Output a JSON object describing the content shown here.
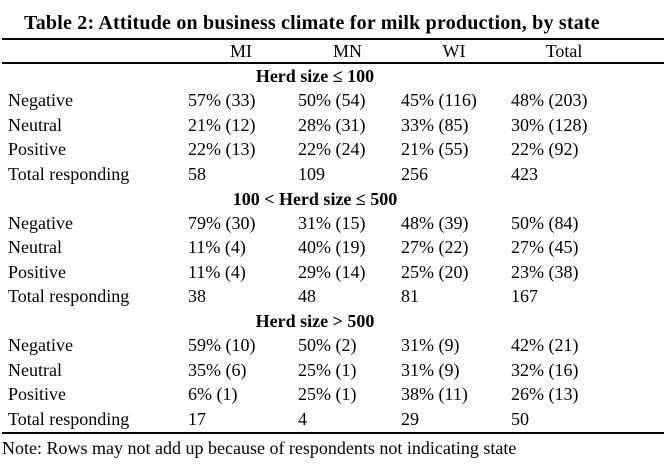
{
  "title": "Table 2: Attitude on business climate for milk production, by state",
  "columns": [
    "MI",
    "MN",
    "WI",
    "Total"
  ],
  "sections": [
    {
      "header": "Herd size ≤ 100",
      "rows": [
        {
          "label": "Negative",
          "values": [
            "57% (33)",
            "50% (54)",
            "45% (116)",
            "48% (203)"
          ]
        },
        {
          "label": "Neutral",
          "values": [
            "21% (12)",
            "28% (31)",
            "33% (85)",
            "30% (128)"
          ]
        },
        {
          "label": "Positive",
          "values": [
            "22% (13)",
            "22% (24)",
            "21% (55)",
            "22% (92)"
          ]
        },
        {
          "label": "Total responding",
          "values": [
            "58",
            "109",
            "256",
            "423"
          ]
        }
      ]
    },
    {
      "header": "100 < Herd size ≤ 500",
      "rows": [
        {
          "label": "Negative",
          "values": [
            "79% (30)",
            "31% (15)",
            "48% (39)",
            "50% (84)"
          ]
        },
        {
          "label": "Neutral",
          "values": [
            "11% (4)",
            "40% (19)",
            "27% (22)",
            "27% (45)"
          ]
        },
        {
          "label": "Positive",
          "values": [
            "11% (4)",
            "29% (14)",
            "25% (20)",
            "23% (38)"
          ]
        },
        {
          "label": "Total responding",
          "values": [
            "38",
            "48",
            "81",
            "167"
          ]
        }
      ]
    },
    {
      "header": "Herd size > 500",
      "rows": [
        {
          "label": "Negative",
          "values": [
            "59% (10)",
            "50% (2)",
            "31% (9)",
            "42% (21)"
          ]
        },
        {
          "label": "Neutral",
          "values": [
            "35% (6)",
            "25% (1)",
            "31% (9)",
            "32% (16)"
          ]
        },
        {
          "label": "Positive",
          "values": [
            "6% (1)",
            "25% (1)",
            "38% (11)",
            "26% (13)"
          ]
        },
        {
          "label": "Total responding",
          "values": [
            "17",
            "4",
            "29",
            "50"
          ]
        }
      ]
    }
  ],
  "note": "Note: Rows may not add up because of respondents not indicating state",
  "colors": {
    "text": "#000000",
    "background": "#ffffff",
    "rule": "#000000"
  },
  "chart_data": {
    "type": "table",
    "title": "Table 2: Attitude on business climate for milk production, by state",
    "columns": [
      "",
      "MI",
      "MN",
      "WI",
      "Total"
    ],
    "groups": [
      {
        "group": "Herd size ≤ 100",
        "rows": [
          [
            "Negative",
            "57% (33)",
            "50% (54)",
            "45% (116)",
            "48% (203)"
          ],
          [
            "Neutral",
            "21% (12)",
            "28% (31)",
            "33% (85)",
            "30% (128)"
          ],
          [
            "Positive",
            "22% (13)",
            "22% (24)",
            "21% (55)",
            "22% (92)"
          ],
          [
            "Total responding",
            "58",
            "109",
            "256",
            "423"
          ]
        ]
      },
      {
        "group": "100 < Herd size ≤ 500",
        "rows": [
          [
            "Negative",
            "79% (30)",
            "31% (15)",
            "48% (39)",
            "50% (84)"
          ],
          [
            "Neutral",
            "11% (4)",
            "40% (19)",
            "27% (22)",
            "27% (45)"
          ],
          [
            "Positive",
            "11% (4)",
            "29% (14)",
            "25% (20)",
            "23% (38)"
          ],
          [
            "Total responding",
            "38",
            "48",
            "81",
            "167"
          ]
        ]
      },
      {
        "group": "Herd size > 500",
        "rows": [
          [
            "Negative",
            "59% (10)",
            "50% (2)",
            "31% (9)",
            "42% (21)"
          ],
          [
            "Neutral",
            "35% (6)",
            "25% (1)",
            "31% (9)",
            "32% (16)"
          ],
          [
            "Positive",
            "6% (1)",
            "25% (1)",
            "38% (11)",
            "26% (13)"
          ],
          [
            "Total responding",
            "17",
            "4",
            "29",
            "50"
          ]
        ]
      }
    ],
    "note": "Note: Rows may not add up because of respondents not indicating state"
  }
}
